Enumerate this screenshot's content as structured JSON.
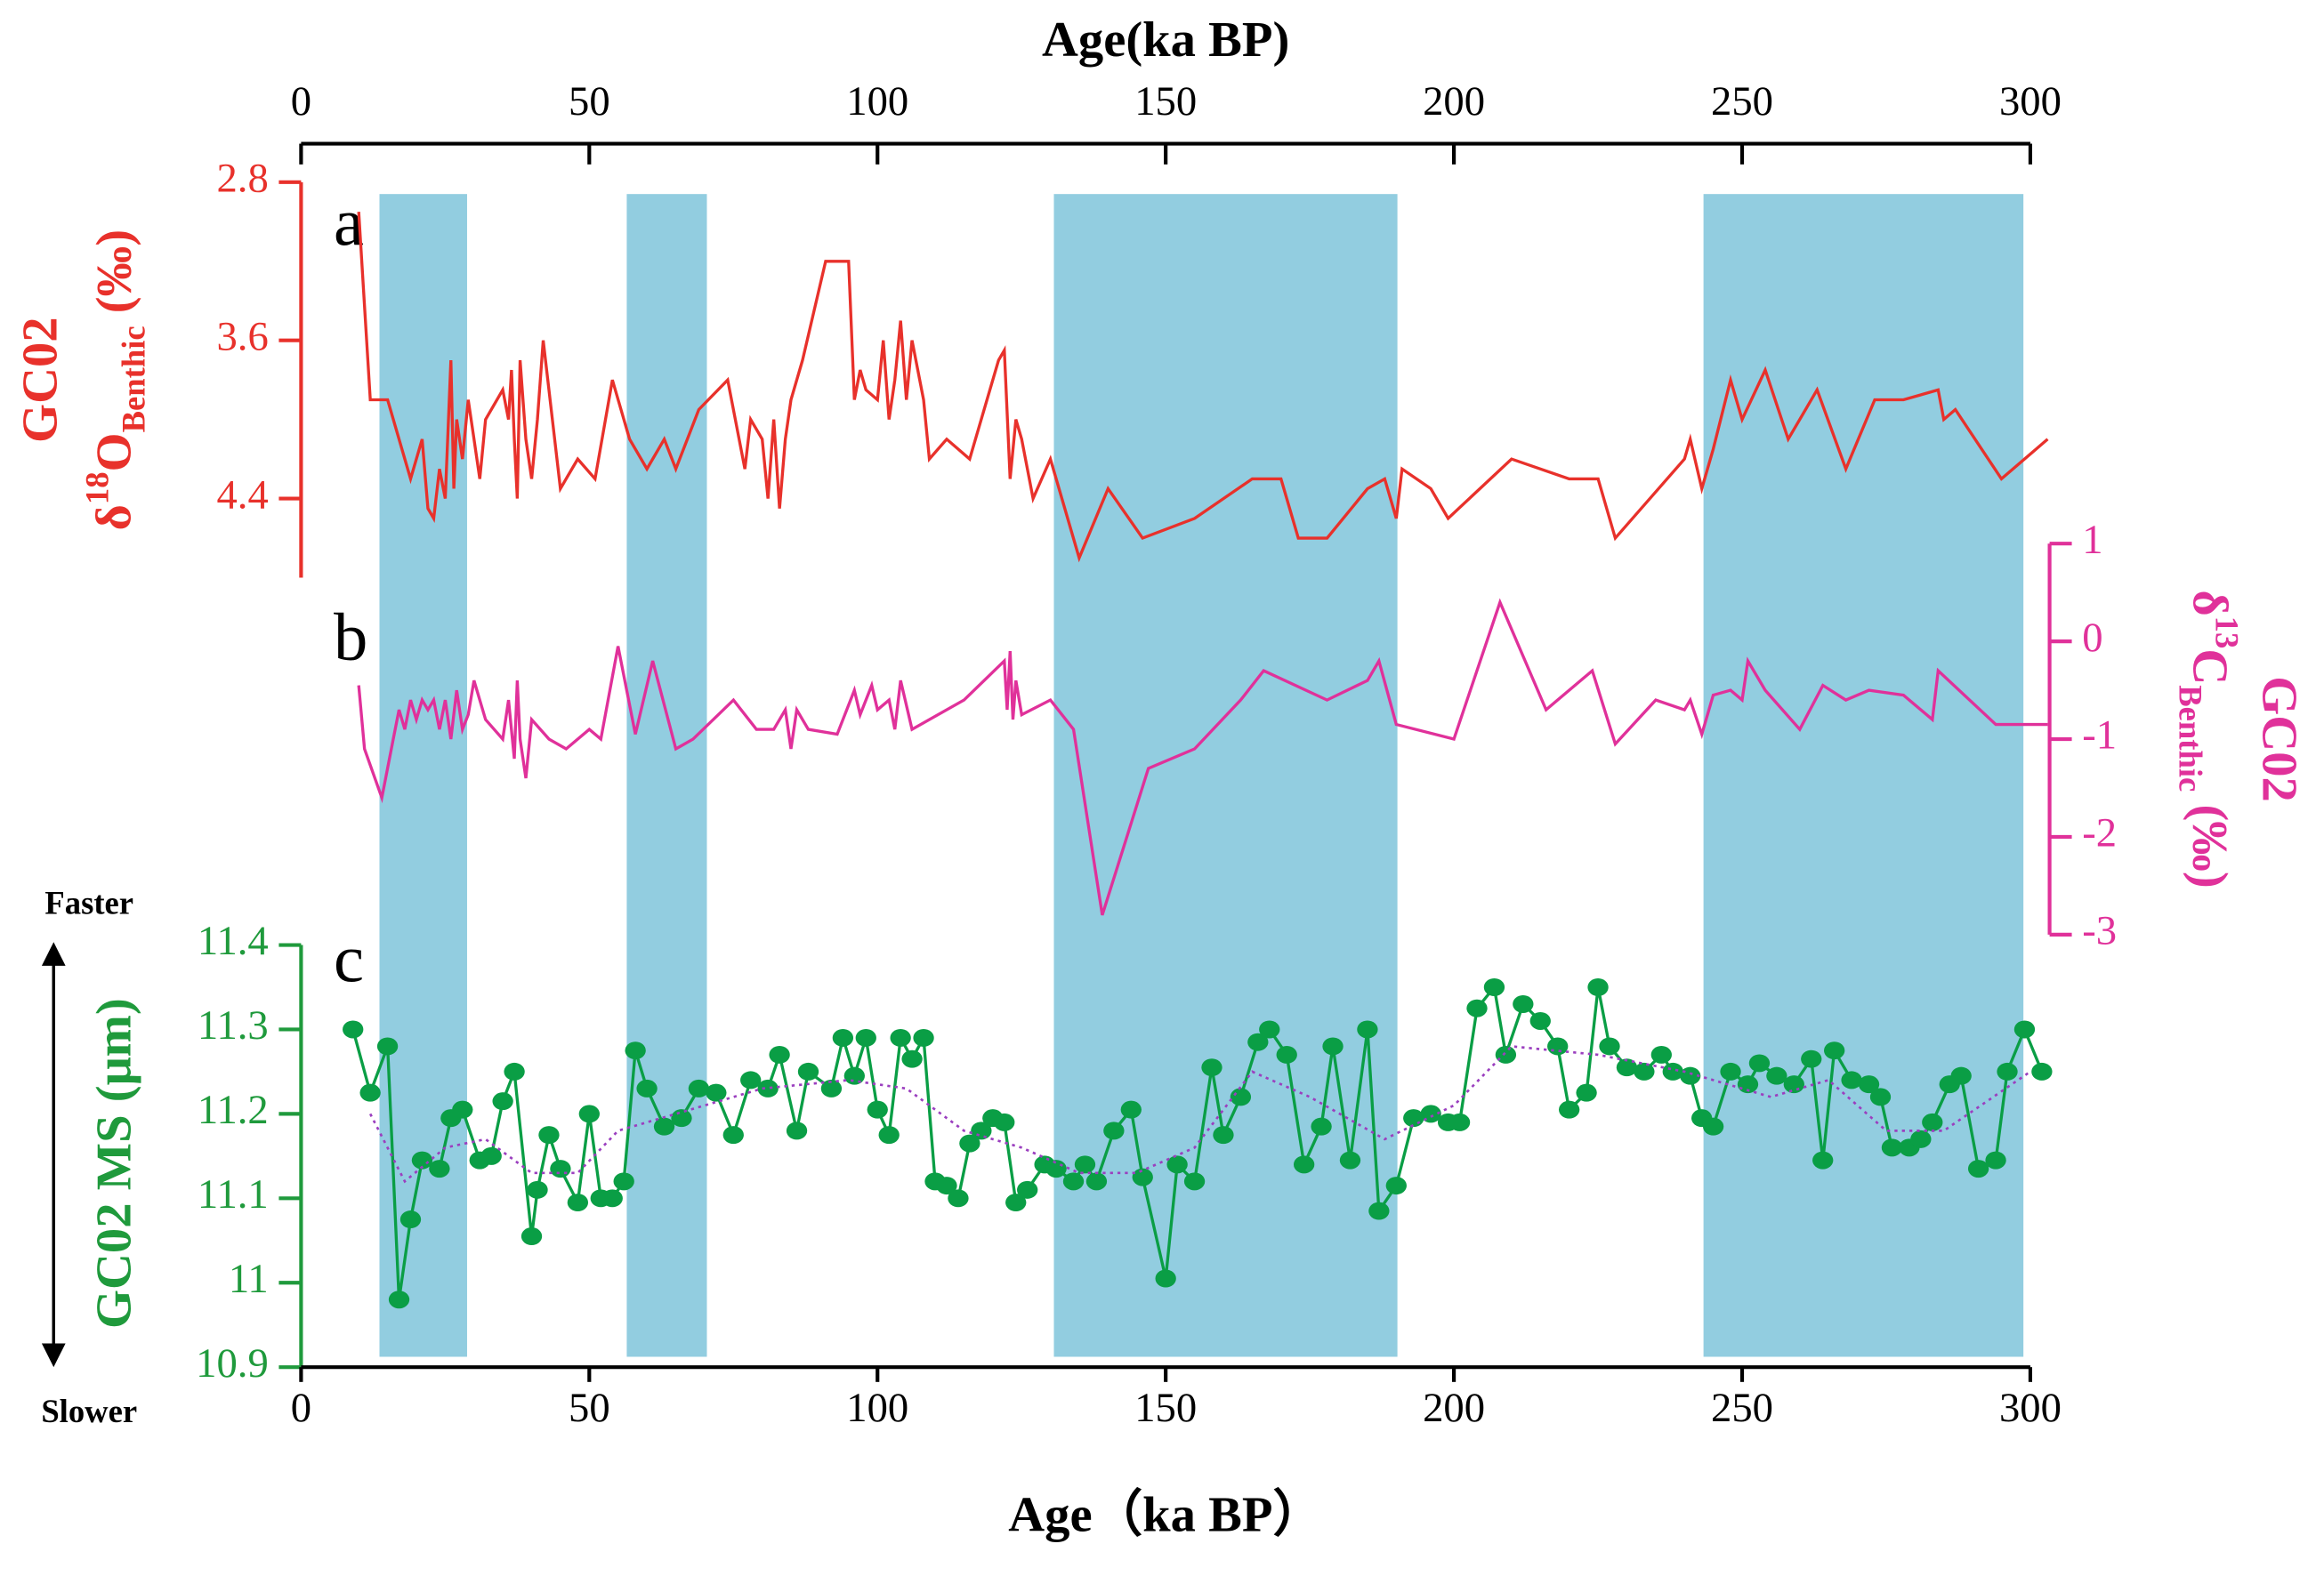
{
  "chart_data": [
    {
      "type": "line",
      "panel_label": "a",
      "x_label": "Age(ka BP)",
      "x_axis_side": "top",
      "xlim": [
        0,
        300
      ],
      "xticks": [
        0,
        50,
        100,
        150,
        200,
        250,
        300
      ],
      "ylim": [
        2.8,
        4.8
      ],
      "y_inverted": true,
      "yticks": [
        2.8,
        3.6,
        4.4
      ],
      "y_axis_side": "left",
      "axis_color": "#e8312b",
      "ylabel": {
        "line1": "GC02",
        "line2": [
          "δ",
          "18",
          "O",
          "Benthic",
          " (‰)"
        ],
        "line2_styles": [
          "normal",
          "sup",
          "normal",
          "sub",
          "normal"
        ]
      },
      "series": [
        {
          "color": "#e8312b",
          "x": [
            10,
            12,
            15,
            18,
            19,
            21,
            22,
            23,
            24,
            25,
            26,
            26.5,
            27,
            28,
            29,
            30,
            31,
            32,
            35,
            36,
            36.5,
            37,
            37.5,
            38,
            39,
            40,
            41,
            42,
            45,
            48,
            51,
            54,
            57,
            60,
            63,
            65,
            69,
            74,
            77,
            78,
            80,
            81,
            82,
            83,
            84,
            85,
            87,
            89,
            91,
            95,
            96,
            97,
            98,
            100,
            101,
            102,
            103,
            104,
            105,
            106,
            108,
            109,
            112,
            116,
            121,
            122,
            123,
            124,
            125,
            127,
            130,
            135,
            140,
            146,
            155,
            165,
            170,
            173,
            178,
            185,
            188,
            190,
            191,
            196,
            199,
            210,
            220,
            225,
            228,
            240,
            241,
            243,
            245,
            248,
            250,
            254,
            258,
            263,
            268,
            273,
            278,
            284,
            285,
            287,
            295,
            303
          ],
          "values": [
            2.95,
            3.9,
            3.9,
            4.2,
            4.3,
            4.1,
            4.45,
            4.5,
            4.25,
            4.4,
            3.7,
            4.35,
            4.0,
            4.2,
            3.9,
            4.1,
            4.3,
            4.0,
            3.85,
            4.0,
            3.75,
            4.1,
            4.4,
            3.7,
            4.1,
            4.3,
            4.0,
            3.6,
            4.35,
            4.2,
            4.3,
            3.8,
            4.1,
            4.25,
            4.1,
            4.25,
            3.95,
            3.8,
            4.25,
            4.0,
            4.1,
            4.4,
            4.0,
            4.45,
            4.1,
            3.9,
            3.7,
            3.45,
            3.2,
            3.2,
            3.9,
            3.75,
            3.85,
            3.9,
            3.6,
            4.0,
            3.8,
            3.5,
            3.9,
            3.6,
            3.9,
            4.2,
            4.1,
            4.2,
            3.7,
            3.65,
            4.3,
            4.0,
            4.1,
            4.4,
            4.2,
            4.7,
            4.35,
            4.6,
            4.5,
            4.3,
            4.3,
            4.6,
            4.6,
            4.35,
            4.3,
            4.5,
            4.25,
            4.35,
            4.5,
            4.2,
            4.3,
            4.3,
            4.6,
            4.2,
            4.1,
            4.35,
            4.15,
            3.8,
            4.0,
            3.75,
            4.1,
            3.85,
            4.25,
            3.9,
            3.9,
            3.85,
            4.0,
            3.95,
            4.3,
            4.1
          ]
        }
      ]
    },
    {
      "type": "line",
      "panel_label": "b",
      "xlim": [
        0,
        300
      ],
      "ylim": [
        -3,
        1
      ],
      "yticks": [
        -3,
        -2,
        -1,
        0,
        1
      ],
      "y_axis_side": "right",
      "axis_color": "#e0319a",
      "ylabel": {
        "line1": "GC02",
        "line2": [
          "δ",
          "13",
          "C",
          "Benthic",
          " (‰)"
        ],
        "line2_styles": [
          "normal",
          "sup",
          "normal",
          "sub",
          "normal"
        ]
      },
      "series": [
        {
          "color": "#e0319a",
          "x": [
            10,
            11,
            14,
            16,
            17,
            18,
            19,
            20,
            21,
            22,
            23,
            24,
            25,
            26,
            27,
            28,
            29,
            30,
            32,
            35,
            36,
            37,
            37.5,
            38,
            39,
            40,
            43,
            46,
            50,
            52,
            55,
            58,
            61,
            65,
            68,
            75,
            79,
            82,
            84,
            85,
            86,
            88,
            93,
            96,
            97,
            99,
            100,
            102,
            103,
            104,
            106,
            109,
            115,
            122,
            122.5,
            123,
            123.5,
            124,
            125,
            130,
            134,
            139,
            147,
            155,
            163,
            167,
            178,
            185,
            187,
            190,
            200,
            208,
            216,
            224,
            228,
            235,
            240,
            241,
            243,
            245,
            248,
            250,
            251,
            254,
            260,
            264,
            268,
            272,
            278,
            283,
            284,
            294,
            303
          ],
          "values": [
            -0.45,
            -1.1,
            -1.6,
            -1.0,
            -0.7,
            -0.9,
            -0.6,
            -0.8,
            -0.6,
            -0.7,
            -0.6,
            -0.9,
            -0.6,
            -1.0,
            -0.5,
            -0.9,
            -0.75,
            -0.4,
            -0.8,
            -1.0,
            -0.6,
            -1.2,
            -0.4,
            -1.0,
            -1.4,
            -0.8,
            -1.0,
            -1.1,
            -0.9,
            -1.0,
            -0.05,
            -0.95,
            -0.2,
            -1.1,
            -1.0,
            -0.6,
            -0.9,
            -0.9,
            -0.7,
            -1.1,
            -0.7,
            -0.9,
            -0.95,
            -0.5,
            -0.75,
            -0.45,
            -0.7,
            -0.6,
            -0.9,
            -0.4,
            -0.9,
            -0.8,
            -0.6,
            -0.2,
            -0.7,
            -0.1,
            -0.8,
            -0.4,
            -0.75,
            -0.6,
            -0.9,
            -2.8,
            -1.3,
            -1.1,
            -0.6,
            -0.3,
            -0.6,
            -0.4,
            -0.2,
            -0.85,
            -1.0,
            0.4,
            -0.7,
            -0.3,
            -1.05,
            -0.6,
            -0.7,
            -0.6,
            -0.95,
            -0.55,
            -0.5,
            -0.6,
            -0.2,
            -0.5,
            -0.9,
            -0.45,
            -0.6,
            -0.5,
            -0.55,
            -0.8,
            -0.3,
            -0.85,
            -0.85
          ]
        }
      ]
    },
    {
      "type": "line",
      "panel_label": "c",
      "x_label": "Age（ka BP）",
      "x_axis_side": "bottom",
      "xlim": [
        0,
        300
      ],
      "xticks": [
        0,
        50,
        100,
        150,
        200,
        250,
        300
      ],
      "ylim": [
        10.9,
        11.4
      ],
      "yticks": [
        10.9,
        11,
        11.1,
        11.2,
        11.3,
        11.4
      ],
      "y_axis_side": "left",
      "axis_color": "#1f9a3c",
      "ylabel": {
        "line1": "GC02 MS (μm)"
      },
      "annotations": [
        "Faster",
        "Slower"
      ],
      "bands": [
        [
          13.6,
          28.8
        ],
        [
          56.5,
          70.4
        ],
        [
          130.6,
          190.2
        ],
        [
          243.3,
          298.8
        ]
      ],
      "band_color": "#92cde0",
      "series": [
        {
          "color": "#0a9e45",
          "marker": true,
          "x": [
            9,
            12,
            15,
            17,
            19,
            21,
            24,
            26,
            28,
            31,
            33,
            35,
            37,
            40,
            41,
            43,
            45,
            48,
            50,
            52,
            54,
            56,
            58,
            60,
            63,
            66,
            69,
            72,
            75,
            78,
            81,
            83,
            86,
            88,
            92,
            94,
            96,
            98,
            100,
            102,
            104,
            106,
            108,
            110,
            112,
            114,
            116,
            118,
            120,
            122,
            124,
            126,
            129,
            131,
            134,
            136,
            138,
            141,
            144,
            146,
            150,
            152,
            155,
            158,
            160,
            163,
            166,
            168,
            171,
            174,
            177,
            179,
            182,
            185,
            187,
            190,
            193,
            196,
            199,
            201,
            204,
            207,
            209,
            212,
            215,
            218,
            220,
            223,
            225,
            227,
            230,
            233,
            236,
            238,
            241,
            243,
            245,
            248,
            251,
            253,
            256,
            259,
            262,
            264,
            266,
            269,
            272,
            274,
            276,
            279,
            281,
            283,
            286,
            288,
            291,
            294,
            296,
            299,
            302
          ],
          "values": [
            11.3,
            11.225,
            11.28,
            10.98,
            11.075,
            11.145,
            11.135,
            11.195,
            11.205,
            11.145,
            11.15,
            11.215,
            11.25,
            11.055,
            11.11,
            11.175,
            11.135,
            11.095,
            11.2,
            11.1,
            11.1,
            11.12,
            11.275,
            11.23,
            11.185,
            11.195,
            11.23,
            11.225,
            11.175,
            11.24,
            11.23,
            11.27,
            11.18,
            11.25,
            11.23,
            11.29,
            11.245,
            11.29,
            11.205,
            11.175,
            11.29,
            11.265,
            11.29,
            11.12,
            11.115,
            11.1,
            11.165,
            11.18,
            11.195,
            11.19,
            11.095,
            11.11,
            11.14,
            11.135,
            11.12,
            11.14,
            11.12,
            11.18,
            11.205,
            11.125,
            11.005,
            11.14,
            11.12,
            11.255,
            11.175,
            11.22,
            11.285,
            11.3,
            11.27,
            11.14,
            11.185,
            11.28,
            11.145,
            11.3,
            11.085,
            11.115,
            11.195,
            11.2,
            11.19,
            11.19,
            11.325,
            11.35,
            11.27,
            11.33,
            11.31,
            11.28,
            11.205,
            11.225,
            11.35,
            11.28,
            11.255,
            11.25,
            11.27,
            11.25,
            11.245,
            11.195,
            11.185,
            11.25,
            11.235,
            11.26,
            11.245,
            11.235,
            11.265,
            11.145,
            11.275,
            11.24,
            11.235,
            11.22,
            11.16,
            11.16,
            11.17,
            11.19,
            11.235,
            11.245,
            11.135,
            11.145,
            11.25,
            11.3,
            11.25
          ]
        },
        {
          "color": "#9b3fbf",
          "line_style": "dotted",
          "x": [
            12,
            18,
            25,
            32,
            40,
            48,
            55,
            65,
            80,
            95,
            105,
            115,
            125,
            135,
            145,
            155,
            165,
            175,
            188,
            200,
            210,
            225,
            240,
            255,
            265,
            275,
            285,
            300
          ],
          "values": [
            11.2,
            11.12,
            11.16,
            11.17,
            11.13,
            11.13,
            11.18,
            11.2,
            11.23,
            11.24,
            11.23,
            11.18,
            11.16,
            11.13,
            11.13,
            11.16,
            11.25,
            11.22,
            11.17,
            11.21,
            11.28,
            11.27,
            11.25,
            11.22,
            11.24,
            11.18,
            11.18,
            11.25
          ]
        }
      ]
    }
  ]
}
